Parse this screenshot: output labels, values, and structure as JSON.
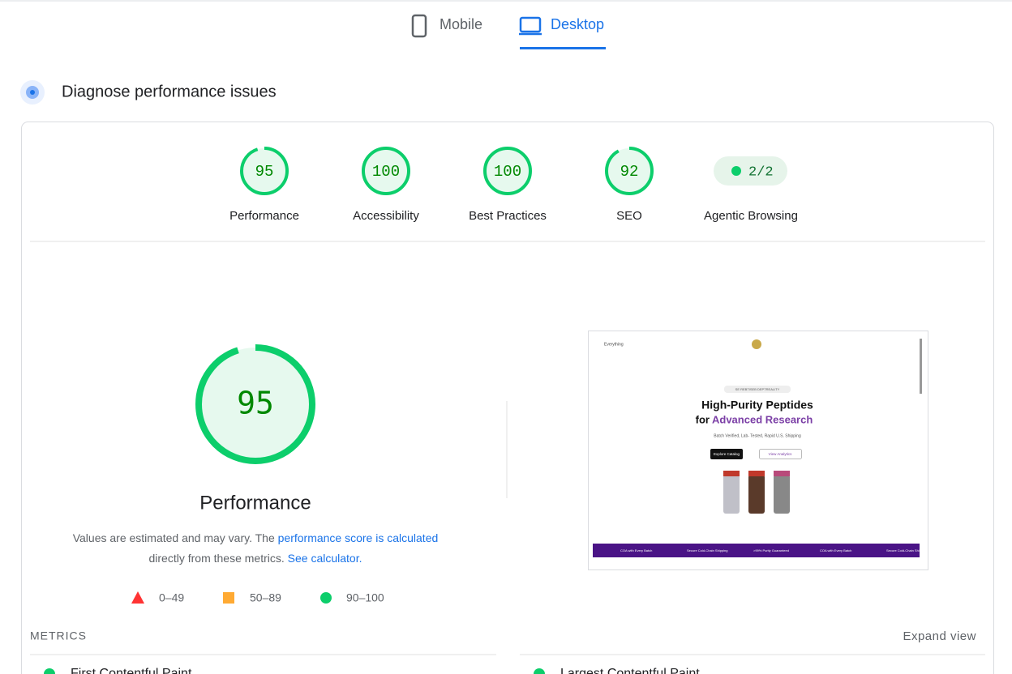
{
  "tabs": [
    {
      "label": "Mobile",
      "active": false
    },
    {
      "label": "Desktop",
      "active": true
    }
  ],
  "section_title": "Diagnose performance issues",
  "gauge_range": [
    0,
    100
  ],
  "scores": [
    {
      "label": "Performance",
      "value": 95
    },
    {
      "label": "Accessibility",
      "value": 100
    },
    {
      "label": "Best Practices",
      "value": 100
    },
    {
      "label": "SEO",
      "value": 92
    }
  ],
  "agentic": {
    "label": "Agentic Browsing",
    "badge": "2/2"
  },
  "main_gauge": {
    "value": 95,
    "label": "Performance"
  },
  "note": {
    "text1": "Values are estimated and may vary. The",
    "link1": "performance score is calculated",
    "text2": "directly from these metrics.",
    "link2": "See calculator."
  },
  "legend": [
    "0–49",
    "50–89",
    "90–100"
  ],
  "metrics_heading": "METRICS",
  "expand": "Expand view",
  "metrics": [
    "First Contentful Paint",
    "Largest Contentful Paint"
  ],
  "preview": {
    "nav": "Everything",
    "badge": "SE REBTISEB DEPTREALITY",
    "headline1": "High-Purity Peptides",
    "headline2a": "for",
    "headline2b": "Advanced Research",
    "sub": "Batch Verified, Lab- Tested, Rapid U.S. Shipping",
    "btn1": "Explore Catalog",
    "btn2": "View Analytics",
    "banner": [
      "COA with Every Batch",
      "Secure Cold-Chain Shipping",
      ">99% Purity Guaranteed",
      "COA with Every Batch",
      "Secure Cold-Chain Shipping"
    ]
  }
}
